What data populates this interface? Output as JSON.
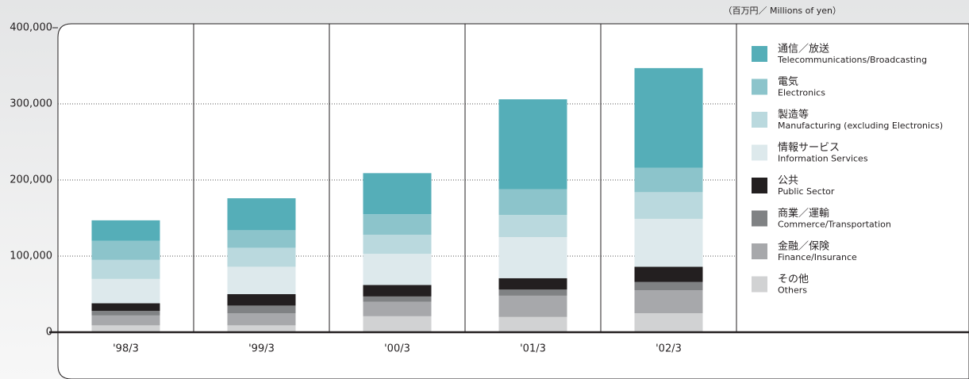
{
  "chart_data": {
    "type": "stacked_bar",
    "unit": "（百万円／ Millions of yen）",
    "categories": [
      "'98/3",
      "'99/3",
      "'00/3",
      "'01/3",
      "'02/3"
    ],
    "ylim": [
      0,
      400000
    ],
    "yticks": [
      0,
      {
        "value": 100000,
        "label": "100,000"
      },
      {
        "value": 200000,
        "label": "200,000"
      },
      {
        "value": 300000,
        "label": "300,000"
      },
      {
        "value": 400000,
        "label": "400,000"
      }
    ],
    "grid": true,
    "legend": "right",
    "series": [
      {
        "name": "その他",
        "name_en": "Others",
        "color": "#d1d2d3",
        "values": [
          9000,
          9000,
          21000,
          20000,
          25000
        ]
      },
      {
        "name": "金融／保険",
        "name_en": "Finance/Insurance",
        "color": "#a7a8ab",
        "values": [
          13000,
          16000,
          19000,
          28000,
          30000
        ]
      },
      {
        "name": "商業／運輸",
        "name_en": "Commerce/Transportation",
        "color": "#808284",
        "values": [
          6000,
          10000,
          7000,
          8000,
          11000
        ]
      },
      {
        "name": "公共",
        "name_en": "Public Sector",
        "color": "#231f20",
        "values": [
          10000,
          15000,
          15000,
          15000,
          20000
        ]
      },
      {
        "name": "情報サービス",
        "name_en": "Information Services",
        "color": "#dde9ec",
        "values": [
          32000,
          36000,
          41000,
          54000,
          63000
        ]
      },
      {
        "name": "製造等",
        "name_en": "Manufacturing (excluding Electronics)",
        "color": "#bad9de",
        "values": [
          25000,
          25000,
          25000,
          29000,
          35000
        ]
      },
      {
        "name": "電気",
        "name_en": "Electronics",
        "color": "#8cc4cb",
        "values": [
          25000,
          23000,
          27000,
          34000,
          32000
        ]
      },
      {
        "name": "通信／放送",
        "name_en": "Telecommunications/Broadcasting",
        "color": "#55aeb8",
        "values": [
          27000,
          42000,
          54000,
          118000,
          131000
        ]
      }
    ]
  }
}
